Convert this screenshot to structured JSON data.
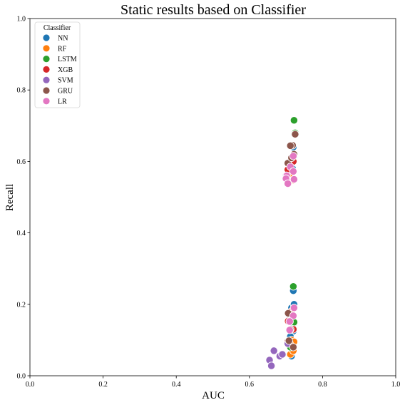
{
  "chart_data": {
    "type": "scatter",
    "title": "Static results based on Classifier",
    "xlabel": "AUC",
    "ylabel": "Recall",
    "xlim": [
      0,
      1
    ],
    "ylim": [
      0,
      1
    ],
    "xticks": [
      "0.0",
      "0.2",
      "0.4",
      "0.6",
      "0.8",
      "1.0"
    ],
    "yticks": [
      "0.0",
      "0.2",
      "0.4",
      "0.6",
      "0.8",
      "1.0"
    ],
    "grid": false,
    "legend": {
      "title": "Classifier",
      "position": "top-left"
    },
    "series": [
      {
        "name": "NN",
        "color": "#1f77b4",
        "points": [
          [
            0.72,
            0.238
          ],
          [
            0.715,
            0.19
          ],
          [
            0.722,
            0.2
          ],
          [
            0.718,
            0.17
          ],
          [
            0.71,
            0.16
          ],
          [
            0.72,
            0.145
          ],
          [
            0.72,
            0.125
          ],
          [
            0.712,
            0.11
          ],
          [
            0.715,
            0.055
          ],
          [
            0.72,
            0.64
          ],
          [
            0.722,
            0.615
          ],
          [
            0.718,
            0.58
          ]
        ]
      },
      {
        "name": "RF",
        "color": "#ff7f0e",
        "points": [
          [
            0.712,
            0.06
          ],
          [
            0.72,
            0.07
          ],
          [
            0.715,
            0.1
          ],
          [
            0.722,
            0.095
          ],
          [
            0.71,
            0.09
          ],
          [
            0.705,
            0.538
          ],
          [
            0.712,
            0.56
          ],
          [
            0.72,
            0.548
          ]
        ]
      },
      {
        "name": "LSTM",
        "color": "#2ca02c",
        "points": [
          [
            0.722,
            0.715
          ],
          [
            0.725,
            0.68
          ],
          [
            0.72,
            0.25
          ],
          [
            0.722,
            0.15
          ],
          [
            0.712,
            0.08
          ],
          [
            0.718,
            0.6
          ]
        ]
      },
      {
        "name": "XGB",
        "color": "#d62728",
        "points": [
          [
            0.706,
            0.153
          ],
          [
            0.715,
            0.18
          ],
          [
            0.705,
            0.096
          ],
          [
            0.72,
            0.6
          ],
          [
            0.705,
            0.577
          ],
          [
            0.72,
            0.13
          ]
        ]
      },
      {
        "name": "SVM",
        "color": "#9467bd",
        "points": [
          [
            0.655,
            0.044
          ],
          [
            0.66,
            0.028
          ],
          [
            0.667,
            0.07
          ],
          [
            0.683,
            0.055
          ],
          [
            0.69,
            0.06
          ],
          [
            0.705,
            0.09
          ],
          [
            0.7,
            0.56
          ]
        ]
      },
      {
        "name": "GRU",
        "color": "#8c564b",
        "points": [
          [
            0.725,
            0.676
          ],
          [
            0.718,
            0.645
          ],
          [
            0.712,
            0.644
          ],
          [
            0.705,
            0.595
          ],
          [
            0.715,
            0.61
          ],
          [
            0.722,
            0.62
          ],
          [
            0.706,
            0.175
          ],
          [
            0.72,
            0.08
          ],
          [
            0.712,
            0.13
          ],
          [
            0.708,
            0.098
          ]
        ]
      },
      {
        "name": "LR",
        "color": "#e377c2",
        "points": [
          [
            0.72,
            0.615
          ],
          [
            0.712,
            0.585
          ],
          [
            0.72,
            0.572
          ],
          [
            0.702,
            0.56
          ],
          [
            0.7,
            0.552
          ],
          [
            0.705,
            0.538
          ],
          [
            0.722,
            0.55
          ],
          [
            0.722,
            0.19
          ],
          [
            0.72,
            0.168
          ],
          [
            0.71,
            0.152
          ],
          [
            0.71,
            0.128
          ]
        ]
      }
    ]
  }
}
